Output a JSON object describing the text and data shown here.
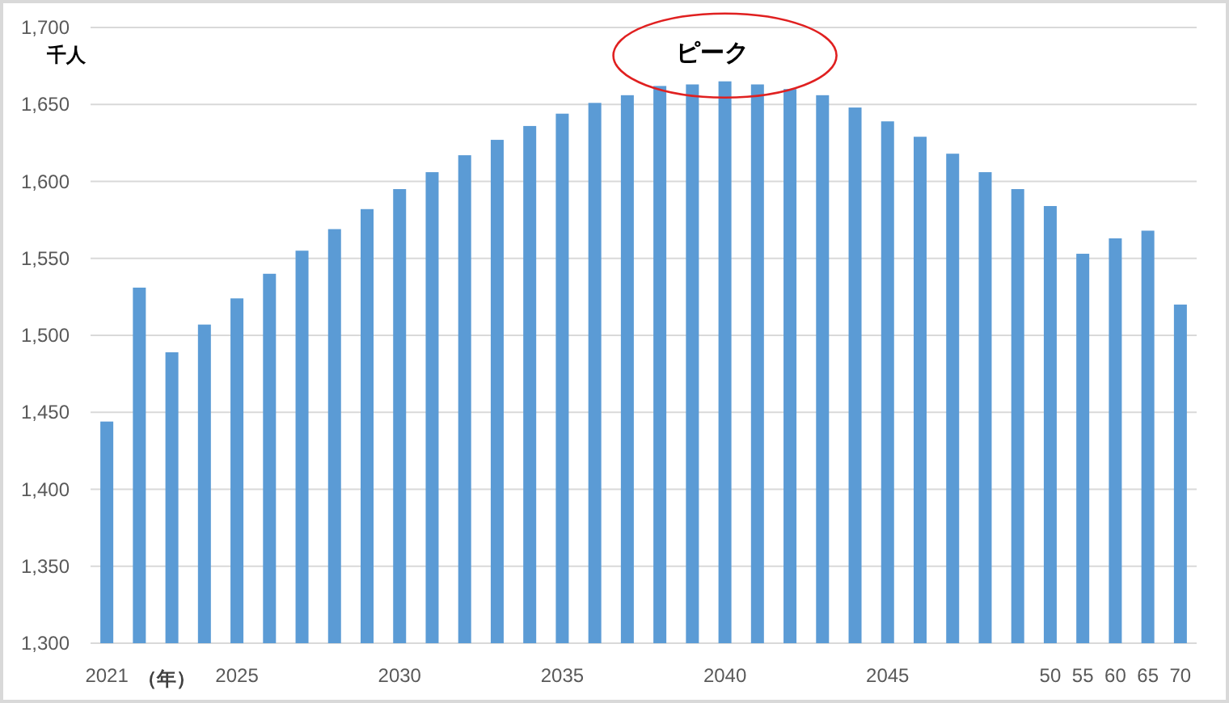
{
  "chart_data": {
    "type": "bar",
    "ylabel": "千人",
    "xlabel": "（年）",
    "categories": [
      "2021",
      null,
      null,
      null,
      "2025",
      null,
      null,
      null,
      null,
      "2030",
      null,
      null,
      null,
      null,
      "2035",
      null,
      null,
      null,
      null,
      "2040",
      null,
      null,
      null,
      null,
      "2045",
      null,
      null,
      null,
      null,
      "50",
      "55",
      "60",
      "65",
      "70"
    ],
    "values": [
      1444,
      1531,
      1489,
      1507,
      1524,
      1540,
      1555,
      1569,
      1582,
      1595,
      1606,
      1617,
      1627,
      1636,
      1644,
      1651,
      1656,
      1662,
      1663,
      1665,
      1663,
      1660,
      1656,
      1648,
      1639,
      1629,
      1618,
      1606,
      1595,
      1584,
      1553,
      1563,
      1568,
      1520
    ],
    "color": "#5b9bd5",
    "ylim": [
      1300,
      1700
    ],
    "yticks": [
      {
        "value": 1300,
        "label": "1,300"
      },
      {
        "value": 1350,
        "label": "1,350"
      },
      {
        "value": 1400,
        "label": "1,400"
      },
      {
        "value": 1450,
        "label": "1,450"
      },
      {
        "value": 1500,
        "label": "1,500"
      },
      {
        "value": 1550,
        "label": "1,550"
      },
      {
        "value": 1600,
        "label": "1,600"
      },
      {
        "value": 1650,
        "label": "1,650"
      },
      {
        "value": 1700,
        "label": "1,700"
      }
    ],
    "grid": "y",
    "annotations": [
      "ピーク"
    ]
  }
}
